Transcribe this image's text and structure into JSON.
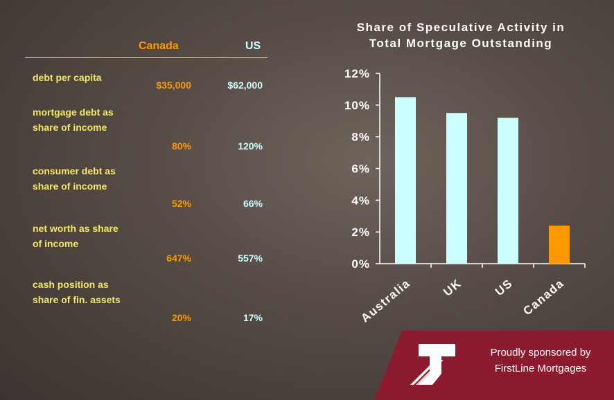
{
  "table": {
    "columns": [
      "Canada",
      "US"
    ],
    "rows": [
      {
        "label": "debt per capita",
        "values": [
          "$35,000",
          "$62,000"
        ]
      },
      {
        "label": "mortgage debt as share of income",
        "values": [
          "80%",
          "120%"
        ]
      },
      {
        "label": "consumer debt as share of income",
        "values": [
          "52%",
          "66%"
        ]
      },
      {
        "label": "net worth as share of income",
        "values": [
          "647%",
          "557%"
        ]
      },
      {
        "label": "cash position as share of fin. assets",
        "values": [
          "20%",
          "17%"
        ]
      }
    ]
  },
  "chart_data": {
    "type": "bar",
    "title": "Share of Speculative Activity in Total Mortgage Outstanding",
    "categories": [
      "Australia",
      "UK",
      "US",
      "Canada"
    ],
    "values": [
      10.5,
      9.5,
      9.2,
      2.4
    ],
    "colors": [
      "#ccffff",
      "#ccffff",
      "#ccffff",
      "#ff9900"
    ],
    "ylim": [
      0,
      12
    ],
    "yticks": [
      {
        "value": 0,
        "label": "0%"
      },
      {
        "value": 2,
        "label": "2%"
      },
      {
        "value": 4,
        "label": "4%"
      },
      {
        "value": 6,
        "label": "6%"
      },
      {
        "value": 8,
        "label": "8%"
      },
      {
        "value": 10,
        "label": "10%"
      },
      {
        "value": 12,
        "label": "12%"
      }
    ]
  },
  "sponsor": {
    "line1": "Proudly sponsored by",
    "line2": "FirstLine Mortgages"
  }
}
